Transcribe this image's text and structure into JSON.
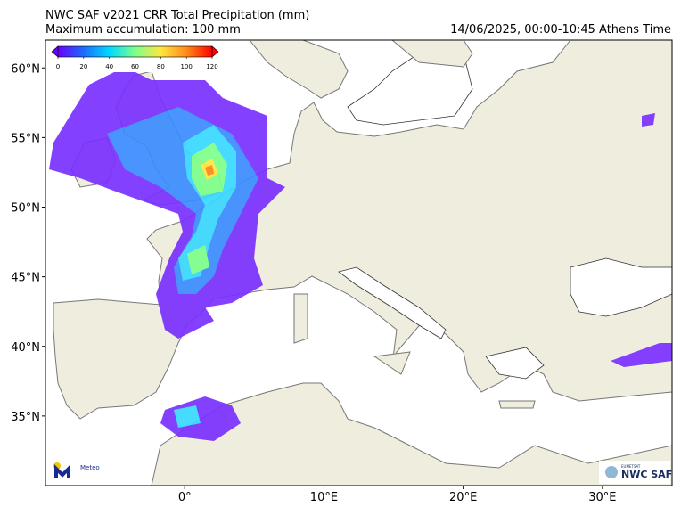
{
  "header": {
    "title": "NWC SAF v2021 CRR Total Precipitation (mm)",
    "subtitle": "Maximum accumulation: 100 mm",
    "time": "14/06/2025, 00:00-10:45 Athens Time"
  },
  "map": {
    "lonlim": [
      -10,
      35
    ],
    "latlim": [
      30,
      62
    ],
    "lat_ticks": [
      {
        "value": 60,
        "label": "60°N"
      },
      {
        "value": 55,
        "label": "55°N"
      },
      {
        "value": 50,
        "label": "50°N"
      },
      {
        "value": 45,
        "label": "45°N"
      },
      {
        "value": 40,
        "label": "40°N"
      },
      {
        "value": 35,
        "label": "35°N"
      }
    ],
    "lon_ticks": [
      {
        "value": 0,
        "label": "0°"
      },
      {
        "value": 10,
        "label": "10°E"
      },
      {
        "value": 20,
        "label": "20°E"
      },
      {
        "value": 30,
        "label": "30°E"
      }
    ]
  },
  "colorbar": {
    "range": [
      0,
      120
    ],
    "ticks": [
      0,
      20,
      40,
      60,
      80,
      100,
      120
    ],
    "colors": [
      "#6a00ff",
      "#1a6cff",
      "#00d8ff",
      "#7dff8a",
      "#ffe640",
      "#ff8a1a",
      "#ff0000"
    ]
  },
  "logos": {
    "meteo": "Meteo",
    "eumetsat": "EUMETSAT",
    "nwcsaf": "NWC SAF"
  }
}
